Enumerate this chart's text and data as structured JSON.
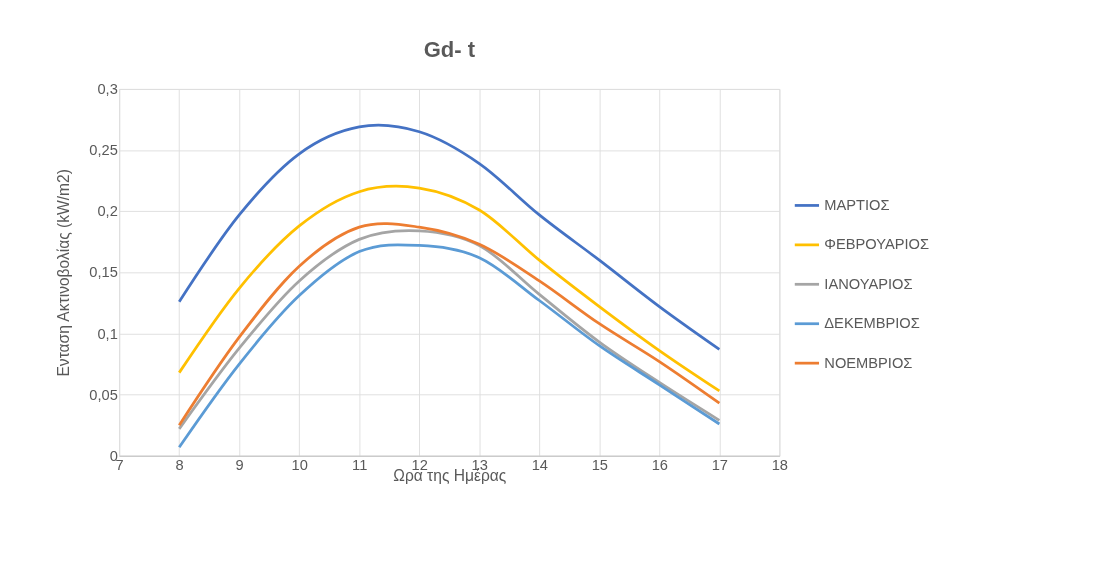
{
  "chart_data": {
    "type": "line",
    "title": "Gd- t",
    "xlabel": "Ωρα της Ημέρας",
    "ylabel": "Ενταση Ακτινοβολίας (kW/m2)",
    "x": [
      8,
      9,
      10,
      11,
      12,
      13,
      14,
      15,
      16,
      17
    ],
    "series": [
      {
        "name": "ΜΑΡΤΙΟΣ",
        "color": "#4472c4",
        "values": [
          0.126,
          0.197,
          0.247,
          0.269,
          0.265,
          0.239,
          0.197,
          0.16,
          0.122,
          0.087
        ]
      },
      {
        "name": "ΦΕΒΡΟΥΑΡΙΟΣ",
        "color": "#ffc000",
        "values": [
          0.068,
          0.137,
          0.188,
          0.216,
          0.219,
          0.201,
          0.16,
          0.122,
          0.086,
          0.053
        ]
      },
      {
        "name": "ΙΑΝΟΥΑΡΙΟΣ",
        "color": "#a5a5a5",
        "values": [
          0.022,
          0.088,
          0.143,
          0.177,
          0.184,
          0.172,
          0.132,
          0.093,
          0.06,
          0.029
        ]
      },
      {
        "name": "ΔΕΚΕΜΒΡΙΟΣ",
        "color": "#5b9bd5",
        "values": [
          0.007,
          0.075,
          0.131,
          0.167,
          0.172,
          0.162,
          0.127,
          0.09,
          0.058,
          0.026
        ]
      },
      {
        "name": "ΝΟΕΜΒΡΙΟΣ",
        "color": "#ed7d31",
        "values": [
          0.025,
          0.097,
          0.155,
          0.187,
          0.187,
          0.173,
          0.143,
          0.108,
          0.077,
          0.043
        ]
      }
    ],
    "xlim": [
      7,
      18
    ],
    "xticks": [
      7,
      8,
      9,
      10,
      11,
      12,
      13,
      14,
      15,
      16,
      17,
      18
    ],
    "ylim": [
      0,
      0.3
    ],
    "yticks": [
      0,
      {
        "value": 0.05,
        "label": "0,05"
      },
      {
        "value": 0.1,
        "label": "0,1"
      },
      {
        "value": 0.15,
        "label": "0,15"
      },
      {
        "value": 0.2,
        "label": "0,2"
      },
      {
        "value": 0.25,
        "label": "0,25"
      },
      {
        "value": 0.3,
        "label": "0,3"
      }
    ],
    "grid": true,
    "legend": "right",
    "marker": "none",
    "line_style": "solid"
  }
}
